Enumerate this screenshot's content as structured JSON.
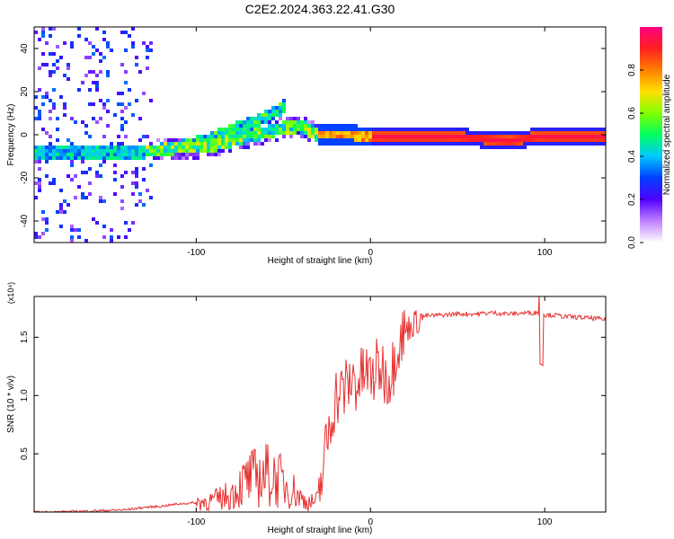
{
  "title": "C2E2.2024.363.22.41.G30",
  "colors": {
    "snr_line": "#e83030",
    "axis": "#000000",
    "track_core": "#d8203a"
  },
  "chart_data": [
    {
      "type": "heatmap",
      "xlabel": "Height of straight line (km)",
      "ylabel": "Frequency (Hz)",
      "xlim": [
        -193,
        135
      ],
      "ylim": [
        -50,
        50
      ],
      "xticks": [
        -100,
        0,
        100
      ],
      "xtick_labels": [
        "-100",
        "0",
        "100"
      ],
      "yticks": [
        -40,
        -20,
        0,
        20,
        40
      ],
      "ytick_labels": [
        "-40",
        "-20",
        "0",
        "20",
        "40"
      ],
      "colorbar": {
        "label": "Normalized spectral amplitude",
        "range": [
          0,
          1
        ],
        "ticks": [
          0,
          0.2,
          0.4,
          0.6,
          0.8
        ],
        "tick_labels": [
          "0.0",
          "0.2",
          "0.4",
          "0.6",
          "0.8"
        ],
        "colormap": [
          "#ffffff",
          "#c080ff",
          "#5000ff",
          "#0040ff",
          "#00c8ff",
          "#00ff60",
          "#80ff00",
          "#ffe000",
          "#ff8000",
          "#ff2020",
          "#ff0080"
        ]
      },
      "track": {
        "x": [
          -190,
          -170,
          -150,
          -130,
          -110,
          -100,
          -90,
          -80,
          -70,
          -60,
          -50,
          -40,
          -30,
          -20,
          -10,
          0,
          20,
          50,
          80,
          95,
          110,
          135
        ],
        "y": [
          -8,
          -8,
          -8,
          -8,
          -6,
          -6,
          -5,
          -3,
          -1,
          1,
          3,
          4,
          0,
          0,
          0,
          -1,
          -1,
          -1,
          -3,
          -1,
          -1,
          -1
        ]
      },
      "branch": {
        "x": [
          -110,
          -95,
          -80,
          -65,
          -55,
          -48
        ],
        "y": [
          -6,
          -3,
          2,
          6,
          10,
          14
        ]
      }
    },
    {
      "type": "line",
      "xlabel": "Height of straight line (km)",
      "ylabel": "SNR (10 * v/v)",
      "y_multiplier": "(x10⁴)",
      "xlim": [
        -193,
        135
      ],
      "ylim": [
        0,
        1.85
      ],
      "xticks": [
        -100,
        0,
        100
      ],
      "xtick_labels": [
        "-100",
        "0",
        "100"
      ],
      "yticks": [
        0.5,
        1.0,
        1.5
      ],
      "ytick_labels": [
        "0.5",
        "1.0",
        "1.5"
      ],
      "series": [
        {
          "name": "SNR",
          "x": [
            -193,
            -180,
            -160,
            -140,
            -130,
            -120,
            -110,
            -100,
            -90,
            -80,
            -75,
            -70,
            -65,
            -60,
            -55,
            -50,
            -45,
            -40,
            -35,
            -30,
            -28,
            -25,
            -22,
            -20,
            -18,
            -15,
            -12,
            -10,
            -8,
            -5,
            -3,
            0,
            3,
            5,
            8,
            10,
            13,
            15,
            18,
            20,
            23,
            25,
            28,
            30,
            40,
            50,
            60,
            70,
            80,
            90,
            95,
            98,
            100,
            105,
            110,
            120,
            130,
            135
          ],
          "y": [
            0.0,
            0.0,
            0.01,
            0.02,
            0.04,
            0.05,
            0.07,
            0.08,
            0.1,
            0.15,
            0.22,
            0.28,
            0.3,
            0.32,
            0.3,
            0.25,
            0.2,
            0.12,
            0.08,
            0.1,
            0.3,
            0.6,
            0.85,
            1.0,
            1.0,
            1.05,
            1.1,
            1.15,
            1.1,
            1.15,
            1.2,
            1.15,
            1.2,
            1.25,
            1.2,
            1.15,
            1.25,
            1.45,
            1.5,
            1.55,
            1.6,
            1.62,
            1.65,
            1.68,
            1.69,
            1.7,
            1.7,
            1.71,
            1.7,
            1.71,
            1.71,
            1.72,
            1.69,
            1.69,
            1.68,
            1.67,
            1.66,
            1.65
          ]
        }
      ]
    }
  ]
}
